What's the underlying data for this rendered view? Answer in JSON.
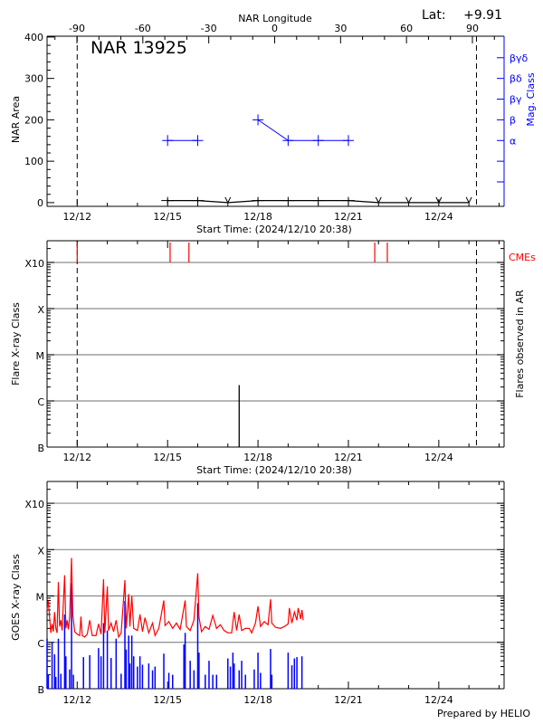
{
  "lat_label": "Lat:",
  "lat_value": "+9.91",
  "footer": "Prepared by HELIO",
  "colors": {
    "axis": "#000000",
    "grid": "#8c8c8c",
    "mag_class": "#0000ff",
    "cme": "#ff0000",
    "goes_long": "#ff0000",
    "goes_short": "#0000ff"
  },
  "chart_data": [
    {
      "type": "line",
      "title": "NAR 13925",
      "xlabel": "Start Time: (2024/12/10 20:38)",
      "ylabel": "NAR Area",
      "y2label": "Mag. Class",
      "top_axis_label": "NAR Longitude",
      "top_axis_ticks": [
        "-90",
        "-60",
        "-30",
        "0",
        "30",
        "60",
        "90"
      ],
      "xlim": [
        "12/11 00:00",
        "12/26 04:00"
      ],
      "ylim": [
        -9,
        402
      ],
      "x_tick_labels": [
        "12/12",
        "12/15",
        "12/18",
        "12/21",
        "12/24"
      ],
      "y_tick_labels": [
        "0",
        "100",
        "200",
        "300",
        "400"
      ],
      "limb_markers": [
        {
          "time": "12/12 00:00",
          "longitude": "-90"
        },
        {
          "time": "12/25 06:00",
          "longitude": "90"
        }
      ],
      "mag_class_ticks": [
        {
          "area": 50,
          "label": ""
        },
        {
          "area": 100,
          "label": ""
        },
        {
          "area": 150,
          "label": "α"
        },
        {
          "area": 200,
          "label": "β"
        },
        {
          "area": 250,
          "label": "βγ"
        },
        {
          "area": 300,
          "label": "βδ"
        },
        {
          "area": 350,
          "label": "βγδ"
        }
      ],
      "series": [
        {
          "kind": "area",
          "points": [
            [
              "12/15 00:00",
              5
            ],
            [
              "12/16 00:00",
              5
            ],
            [
              "12/17 00:00",
              0
            ],
            [
              "12/18 00:00",
              5
            ],
            [
              "12/19 00:00",
              5
            ],
            [
              "12/20 00:00",
              5
            ],
            [
              "12/21 00:00",
              5
            ],
            [
              "12/22 00:00",
              0
            ],
            [
              "12/23 00:00",
              0
            ],
            [
              "12/24 00:00",
              0
            ],
            [
              "12/25 00:00",
              0
            ]
          ]
        },
        {
          "kind": "mag_class",
          "segments": [
            [
              [
                "12/15 00:00",
                "α"
              ],
              [
                "12/16 00:00",
                "α"
              ]
            ],
            [
              [
                "12/18 00:00",
                "β"
              ],
              [
                "12/19 00:00",
                "α"
              ],
              [
                "12/20 00:00",
                "α"
              ],
              [
                "12/21 00:00",
                "α"
              ]
            ]
          ]
        }
      ]
    },
    {
      "type": "bar",
      "xlabel": "Start Time: (2024/12/10 20:38)",
      "ylabel": "Flare X-ray Class",
      "y2label": "Flares observed in AR",
      "cme_label": "CMEs",
      "xlim": [
        "12/11 00:00",
        "12/26 04:00"
      ],
      "ylim": [
        1e-07,
        0.00295
      ],
      "yscale": "log",
      "x_tick_labels": [
        "12/12",
        "12/15",
        "12/18",
        "12/21",
        "12/24"
      ],
      "y_ticks": [
        {
          "flux": 1e-07,
          "label": "B"
        },
        {
          "flux": 1e-06,
          "label": "C"
        },
        {
          "flux": 1e-05,
          "label": "M"
        },
        {
          "flux": 0.0001,
          "label": "X"
        },
        {
          "flux": 0.001,
          "label": "X10"
        }
      ],
      "grid": true,
      "limb_markers": [
        "12/12 00:00",
        "12/25 06:00"
      ],
      "flares": [
        {
          "time": "12/17 09:00",
          "class": "C2.2",
          "flux": 2.2e-06
        }
      ],
      "cmes": [
        "12/12 00:00",
        "12/15 02:00",
        "12/15 17:00",
        "12/21 21:00",
        "12/22 07:00"
      ]
    },
    {
      "type": "line",
      "ylabel": "GOES X-ray Class",
      "xlim": [
        "12/11 00:00",
        "12/26 04:00"
      ],
      "ylim": [
        1e-07,
        0.00295
      ],
      "yscale": "log",
      "x_tick_labels": [
        "12/12",
        "12/15",
        "12/18",
        "12/21",
        "12/24"
      ],
      "y_ticks": [
        {
          "flux": 1e-07,
          "label": "B"
        },
        {
          "flux": 1e-06,
          "label": "C"
        },
        {
          "flux": 1e-05,
          "label": "M"
        },
        {
          "flux": 0.0001,
          "label": "X"
        },
        {
          "flux": 0.001,
          "label": "X10"
        }
      ],
      "grid": true,
      "series": [
        {
          "channel": "long",
          "color": "#ff0000",
          "points": [
            [
              "12/11 00:00",
              5e-06
            ],
            [
              "12/11 01:00",
              8e-06
            ],
            [
              "12/11 02:00",
              3.5e-06
            ],
            [
              "12/11 03:00",
              1.6e-06
            ],
            [
              "12/11 04:00",
              2.5e-06
            ],
            [
              "12/11 05:00",
              1.7e-06
            ],
            [
              "12/11 06:00",
              4.5e-06
            ],
            [
              "12/11 07:00",
              2e-06
            ],
            [
              "12/11 08:00",
              1.6e-06
            ],
            [
              "12/11 09:00",
              2e-05
            ],
            [
              "12/11 10:00",
              2.2e-06
            ],
            [
              "12/11 11:00",
              3e-06
            ],
            [
              "12/11 12:00",
              1.8e-06
            ],
            [
              "12/11 14:00",
              2.8e-05
            ],
            [
              "12/11 15:00",
              2e-06
            ],
            [
              "12/11 16:00",
              3e-06
            ],
            [
              "12/11 17:00",
              1.9e-06
            ],
            [
              "12/11 18:00",
              3.5e-06
            ],
            [
              "12/11 19:30",
              6.6e-05
            ],
            [
              "12/11 20:30",
              4e-06
            ],
            [
              "12/11 22:00",
              1.7e-06
            ],
            [
              "12/12 00:00",
              1.5e-06
            ],
            [
              "12/12 02:00",
              1.4e-06
            ],
            [
              "12/12 03:00",
              3.6e-06
            ],
            [
              "12/12 04:00",
              1.4e-06
            ],
            [
              "12/12 06:00",
              1.3e-06
            ],
            [
              "12/12 08:00",
              1.5e-06
            ],
            [
              "12/12 10:00",
              3e-06
            ],
            [
              "12/12 12:00",
              1.4e-06
            ],
            [
              "12/12 15:00",
              1.4e-06
            ],
            [
              "12/12 17:00",
              2.5e-06
            ],
            [
              "12/12 19:00",
              1.5e-06
            ],
            [
              "12/12 21:00",
              2.3e-05
            ],
            [
              "12/12 22:00",
              1.6e-06
            ],
            [
              "12/13 00:00",
              1.6e-05
            ],
            [
              "12/13 01:00",
              1.8e-06
            ],
            [
              "12/13 03:00",
              2.6e-06
            ],
            [
              "12/13 05:00",
              1.7e-06
            ],
            [
              "12/13 07:00",
              3e-06
            ],
            [
              "12/13 09:00",
              1.3e-06
            ],
            [
              "12/13 11:00",
              1.6e-06
            ],
            [
              "12/13 14:00",
              2.2e-05
            ],
            [
              "12/13 15:00",
              2e-06
            ],
            [
              "12/13 17:00",
              1.1e-05
            ],
            [
              "12/13 18:00",
              2.2e-06
            ],
            [
              "12/13 19:30",
              1e-05
            ],
            [
              "12/13 21:00",
              2e-06
            ],
            [
              "12/14 00:00",
              1.8e-06
            ],
            [
              "12/14 02:00",
              4e-06
            ],
            [
              "12/14 04:00",
              1.7e-06
            ],
            [
              "12/14 06:00",
              3.4e-06
            ],
            [
              "12/14 09:00",
              1.6e-06
            ],
            [
              "12/14 12:00",
              2.6e-06
            ],
            [
              "12/14 14:00",
              1.4e-06
            ],
            [
              "12/14 17:00",
              2e-06
            ],
            [
              "12/14 21:00",
              8e-06
            ],
            [
              "12/14 22:00",
              2.3e-06
            ],
            [
              "12/15 01:00",
              2.8e-06
            ],
            [
              "12/15 04:00",
              2e-06
            ],
            [
              "12/15 07:00",
              2.6e-06
            ],
            [
              "12/15 10:00",
              1.9e-06
            ],
            [
              "12/15 14:00",
              8e-06
            ],
            [
              "12/15 15:00",
              2.2e-06
            ],
            [
              "12/15 18:00",
              1.8e-06
            ],
            [
              "12/15 21:00",
              3e-06
            ],
            [
              "12/16 00:00",
              3.1e-05
            ],
            [
              "12/16 01:00",
              3.5e-06
            ],
            [
              "12/16 03:00",
              1.7e-06
            ],
            [
              "12/16 06:00",
              2.2e-06
            ],
            [
              "12/16 09:00",
              1.9e-06
            ],
            [
              "12/16 12:00",
              3.8e-06
            ],
            [
              "12/16 15:00",
              2e-06
            ],
            [
              "12/16 18:00",
              2.4e-06
            ],
            [
              "12/16 21:00",
              1.8e-06
            ],
            [
              "12/17 00:00",
              1.6e-06
            ],
            [
              "12/17 03:00",
              1.6e-06
            ],
            [
              "12/17 05:00",
              4.5e-06
            ],
            [
              "12/17 07:00",
              1.8e-06
            ],
            [
              "12/17 09:00",
              4e-06
            ],
            [
              "12/17 11:00",
              1.8e-06
            ],
            [
              "12/17 14:00",
              2e-06
            ],
            [
              "12/17 17:00",
              2e-06
            ],
            [
              "12/17 19:00",
              1.6e-06
            ],
            [
              "12/17 22:00",
              2.6e-06
            ],
            [
              "12/18 00:00",
              6e-06
            ],
            [
              "12/18 02:00",
              2.2e-06
            ],
            [
              "12/18 05:00",
              2.8e-06
            ],
            [
              "12/18 08:00",
              2.4e-06
            ],
            [
              "12/18 10:00",
              8.5e-06
            ],
            [
              "12/18 11:00",
              2.6e-06
            ],
            [
              "12/18 14:00",
              2.1e-06
            ],
            [
              "12/18 18:00",
              2e-06
            ],
            [
              "12/18 21:00",
              2.2e-06
            ],
            [
              "12/19 00:00",
              2.5e-06
            ],
            [
              "12/19 01:00",
              5.5e-06
            ],
            [
              "12/19 03:00",
              2.6e-06
            ],
            [
              "12/19 05:00",
              4.5e-06
            ],
            [
              "12/19 07:00",
              3e-06
            ],
            [
              "12/19 08:00",
              5.5e-06
            ],
            [
              "12/19 10:00",
              3.2e-06
            ],
            [
              "12/19 11:00",
              5e-06
            ],
            [
              "12/19 12:00",
              3e-06
            ]
          ]
        },
        {
          "channel": "short",
          "color": "#0000ff",
          "points": [
            [
              "12/11 00:00",
              1.2e-06
            ],
            [
              "12/11 01:00",
              2e-07
            ],
            [
              "12/11 04:00",
              1e-06
            ],
            [
              "12/11 06:00",
              5.5e-07
            ],
            [
              "12/11 07:00",
              1.8e-07
            ],
            [
              "12/11 09:00",
              1.2e-06
            ],
            [
              "12/11 11:00",
              2.1e-07
            ],
            [
              "12/11 14:00",
              4e-06
            ],
            [
              "12/11 15:00",
              5e-07
            ],
            [
              "12/11 18:00",
              2.6e-07
            ],
            [
              "12/11 19:30",
              1.9e-05
            ],
            [
              "12/11 21:00",
              2e-07
            ],
            [
              "12/12 05:00",
              4.8e-07
            ],
            [
              "12/12 10:00",
              5.3e-07
            ],
            [
              "12/12 17:00",
              7.5e-07
            ],
            [
              "12/12 19:00",
              5e-07
            ],
            [
              "12/12 21:00",
              2.6e-06
            ],
            [
              "12/13 00:00",
              1.8e-06
            ],
            [
              "12/13 03:00",
              4.6e-07
            ],
            [
              "12/13 07:00",
              1.2e-06
            ],
            [
              "12/13 11:00",
              2.1e-07
            ],
            [
              "12/13 14:00",
              7.8e-06
            ],
            [
              "12/13 15:00",
              7e-07
            ],
            [
              "12/13 17:00",
              1.4e-06
            ],
            [
              "12/13 18:00",
              3.5e-07
            ],
            [
              "12/13 19:30",
              1.4e-06
            ],
            [
              "12/13 21:00",
              5e-07
            ],
            [
              "12/14 00:00",
              3e-07
            ],
            [
              "12/14 02:00",
              5e-07
            ],
            [
              "12/14 04:00",
              3.3e-07
            ],
            [
              "12/14 09:00",
              3.5e-07
            ],
            [
              "12/14 12:00",
              2.5e-07
            ],
            [
              "12/14 14:00",
              3e-07
            ],
            [
              "12/14 21:00",
              5.7e-07
            ],
            [
              "12/15 01:00",
              2.2e-07
            ],
            [
              "12/15 04:00",
              2e-07
            ],
            [
              "12/15 13:00",
              9e-07
            ],
            [
              "12/15 14:00",
              1.6e-06
            ],
            [
              "12/15 18:00",
              4e-07
            ],
            [
              "12/15 21:00",
              2.5e-07
            ],
            [
              "12/16 00:00",
              7e-06
            ],
            [
              "12/16 01:00",
              6e-07
            ],
            [
              "12/16 06:00",
              2e-07
            ],
            [
              "12/16 09:00",
              4e-07
            ],
            [
              "12/16 12:00",
              2e-07
            ],
            [
              "12/16 15:00",
              2e-07
            ],
            [
              "12/17 00:00",
              4.5e-07
            ],
            [
              "12/17 02:00",
              3e-07
            ],
            [
              "12/17 04:00",
              6e-07
            ],
            [
              "12/17 05:00",
              3.5e-07
            ],
            [
              "12/17 09:00",
              2.5e-07
            ],
            [
              "12/17 11:00",
              4e-07
            ],
            [
              "12/17 14:00",
              2e-07
            ],
            [
              "12/17 21:00",
              2.6e-07
            ],
            [
              "12/18 00:00",
              6e-07
            ],
            [
              "12/18 02:00",
              2.2e-07
            ],
            [
              "12/18 10:00",
              7.2e-07
            ],
            [
              "12/18 11:00",
              2e-07
            ],
            [
              "12/19 00:00",
              6e-07
            ],
            [
              "12/19 03:00",
              3.2e-07
            ],
            [
              "12/19 05:00",
              4.5e-07
            ],
            [
              "12/19 07:00",
              4.8e-07
            ],
            [
              "12/19 11:00",
              5e-07
            ]
          ]
        }
      ]
    }
  ]
}
